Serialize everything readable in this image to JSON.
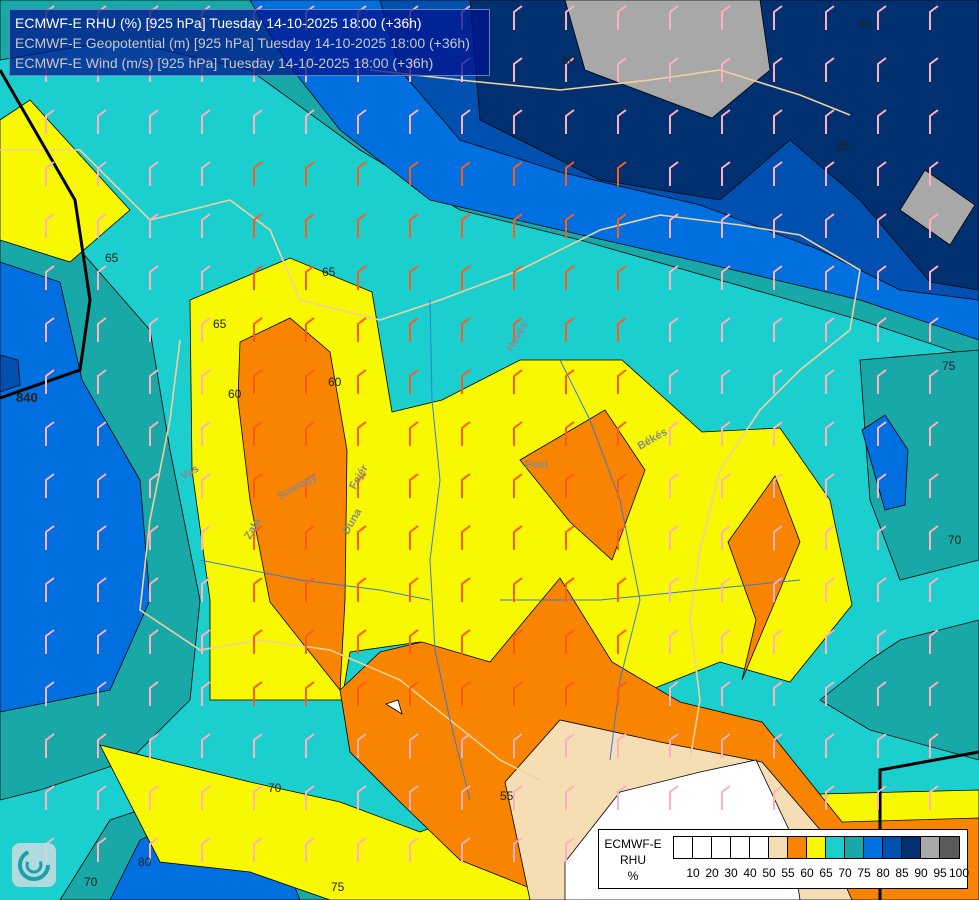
{
  "titles": [
    "ECMWF-E RHU (%) [925 hPa] Tuesday 14-10-2025 18:00 (+36h)",
    "ECMWF-E Geopotential (m) [925 hPa] Tuesday 14-10-2025 18:00 (+36h)",
    "ECMWF-E Wind (m/s) [925 hPa] Tuesday 14-10-2025 18:00 (+36h)"
  ],
  "legend": {
    "line1": "ECMWF-E",
    "line2": "RHU",
    "line3": "%",
    "colors": [
      "#ffffff",
      "#ffffff",
      "#ffffff",
      "#ffffff",
      "#ffffff",
      "#f5deb3",
      "#f88400",
      "#f8f800",
      "#1ccfcf",
      "#18a8a8",
      "#0070e0",
      "#0050b0",
      "#003070",
      "#a8a8a8",
      "#5a5a5a"
    ],
    "labels": [
      "10",
      "20",
      "30",
      "40",
      "50",
      "55",
      "60",
      "65",
      "70",
      "75",
      "80",
      "85",
      "90",
      "95",
      "100"
    ]
  },
  "contour_labels": [
    {
      "text": "65"
    },
    {
      "text": "65"
    },
    {
      "text": "65"
    },
    {
      "text": "60"
    },
    {
      "text": "60"
    },
    {
      "text": "840"
    },
    {
      "text": "75"
    },
    {
      "text": "70"
    },
    {
      "text": "85"
    },
    {
      "text": "80"
    },
    {
      "text": "55"
    },
    {
      "text": "70"
    },
    {
      "text": "70"
    },
    {
      "text": "80"
    },
    {
      "text": "75"
    },
    {
      "text": "60"
    }
  ],
  "place_labels": [
    {
      "text": "Heves"
    },
    {
      "text": "Pest"
    },
    {
      "text": "Békés"
    },
    {
      "text": "Fejér"
    },
    {
      "text": "Duna"
    },
    {
      "text": "Zala"
    },
    {
      "text": "Somogy"
    },
    {
      "text": "Vas"
    }
  ],
  "logo": "ECMWF logo"
}
